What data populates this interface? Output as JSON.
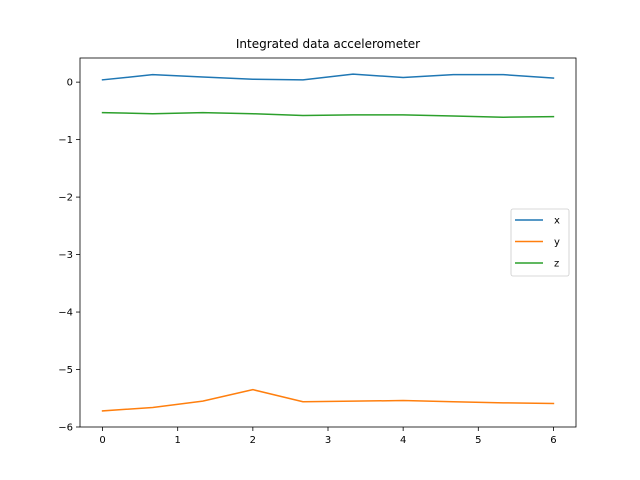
{
  "chart_data": {
    "type": "line",
    "title": "Integrated data accelerometer",
    "xlabel": "",
    "ylabel": "",
    "xlim": [
      -0.3,
      6.3
    ],
    "ylim": [
      -6.0,
      0.42
    ],
    "xticks": [
      0,
      1,
      2,
      3,
      4,
      5,
      6
    ],
    "xtick_labels": [
      "0",
      "1",
      "2",
      "3",
      "4",
      "5",
      "6"
    ],
    "yticks": [
      0,
      -1,
      -2,
      -3,
      -4,
      -5,
      -6
    ],
    "ytick_labels": [
      "0",
      "−1",
      "−2",
      "−3",
      "−4",
      "−5",
      "−6"
    ],
    "grid": false,
    "legend_position": "center-right",
    "x": [
      0,
      0.667,
      1.333,
      2.0,
      2.667,
      3.333,
      4.0,
      4.667,
      5.333,
      6.0
    ],
    "series": [
      {
        "name": "x",
        "color": "#1f77b4",
        "values": [
          0.04,
          0.13,
          0.09,
          0.05,
          0.04,
          0.14,
          0.08,
          0.13,
          0.13,
          0.07
        ]
      },
      {
        "name": "y",
        "color": "#ff7f0e",
        "values": [
          -5.72,
          -5.66,
          -5.55,
          -5.35,
          -5.56,
          -5.55,
          -5.54,
          -5.56,
          -5.58,
          -5.59
        ]
      },
      {
        "name": "z",
        "color": "#2ca02c",
        "values": [
          -0.53,
          -0.55,
          -0.53,
          -0.55,
          -0.58,
          -0.57,
          -0.57,
          -0.59,
          -0.61,
          -0.6
        ]
      }
    ]
  }
}
